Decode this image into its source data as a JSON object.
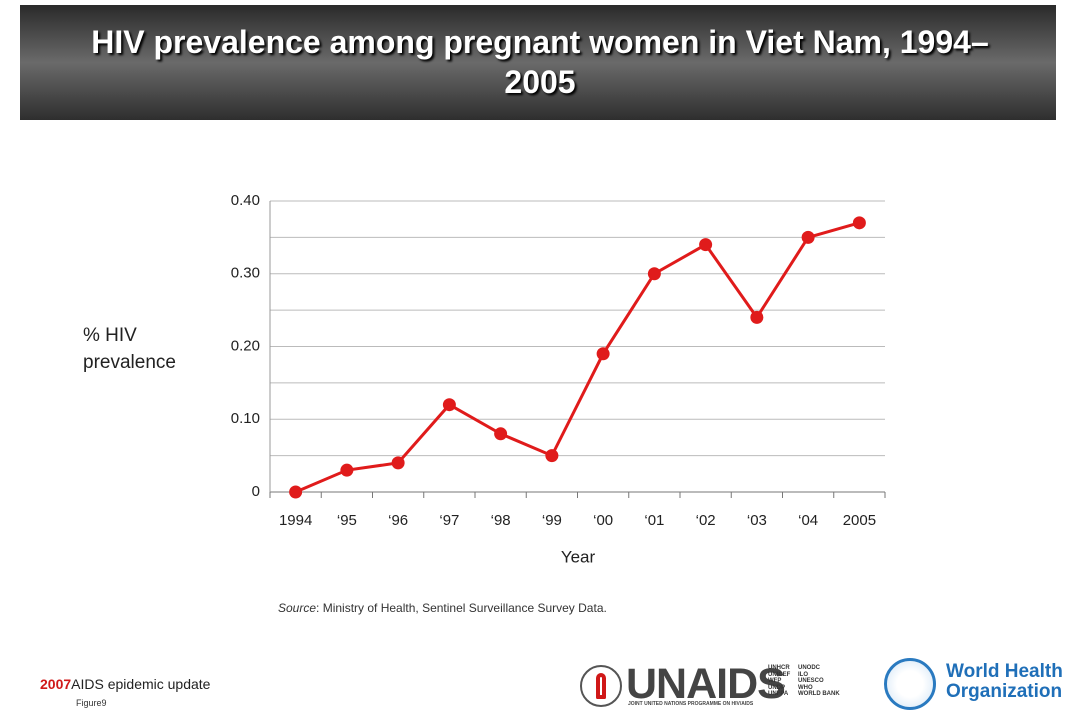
{
  "chart_data": {
    "type": "line",
    "title": "HIV prevalence among pregnant women in Viet Nam, 1994–2005",
    "y_label": "% HIV prevalence",
    "x_label": "Year",
    "categories": [
      "1994",
      "‘95",
      "‘96",
      "‘97",
      "‘98",
      "‘99",
      "‘00",
      "‘01",
      "‘02",
      "‘03",
      "‘04",
      "2005"
    ],
    "values": [
      0,
      0.03,
      0.04,
      0.12,
      0.08,
      0.05,
      0.19,
      0.3,
      0.34,
      0.24,
      0.35,
      0.37
    ],
    "color": "#e01b1b",
    "ylim": [
      0,
      0.4
    ],
    "yticks": [
      0,
      {
        "value": 0.1,
        "label": "0.10"
      },
      {
        "value": 0.2,
        "label": "0.20"
      },
      {
        "value": 0.3,
        "label": "0.30"
      },
      {
        "value": 0.4,
        "label": "0.40"
      }
    ],
    "minor_yticks": [
      0.05,
      0.15,
      0.25,
      0.35
    ],
    "grid": true,
    "source_label": "Source",
    "source_text": ": Ministry of Health, Sentinel Surveillance Survey Data."
  },
  "footer": {
    "year": "2007",
    "publication": "AIDS epidemic update",
    "figure_label": "Figure",
    "figure_number": "9"
  },
  "logos": {
    "unaids": "UNAIDS",
    "unaids_tagline": "JOINT UNITED NATIONS PROGRAMME ON HIV/AIDS",
    "cosponsors_1": [
      "UNHCR",
      "UNICEF",
      "WFP",
      "UNDP",
      "UNFPA"
    ],
    "cosponsors_2": [
      "UNODC",
      "ILO",
      "UNESCO",
      "WHO",
      "WORLD BANK"
    ],
    "who_line_1": "World Health",
    "who_line_2": "Organization"
  }
}
